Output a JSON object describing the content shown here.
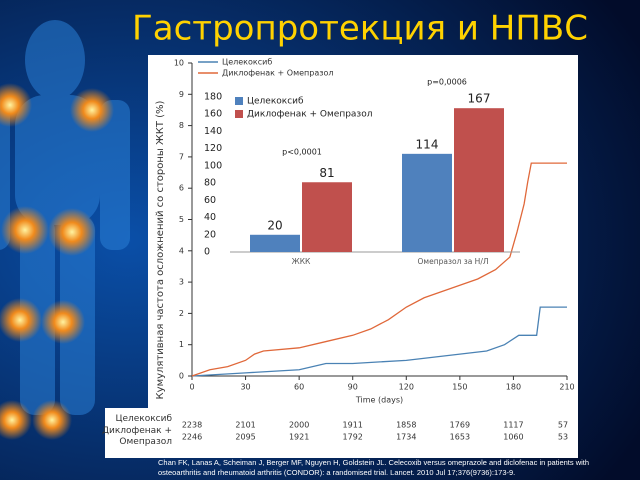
{
  "title": "Гастропротекция и НПВС",
  "chart_data": [
    {
      "type": "line",
      "x_label": "Time (days)",
      "y_label": "Кумулятивная частота осложнений со стороны ЖКТ (%)",
      "xlim": [
        0,
        210
      ],
      "xticks": [
        0,
        30,
        60,
        90,
        120,
        150,
        180,
        210
      ],
      "ylim": [
        0,
        10
      ],
      "yticks": [
        0,
        1,
        2,
        3,
        4,
        5,
        6,
        7,
        8,
        9,
        10
      ],
      "series": [
        {
          "name": "Целекоксиб",
          "color": "#4a82b4",
          "x": [
            0,
            30,
            60,
            75,
            90,
            120,
            150,
            165,
            175,
            183,
            193,
            195,
            210
          ],
          "values": [
            0,
            0.1,
            0.2,
            0.4,
            0.4,
            0.5,
            0.7,
            0.8,
            1.0,
            1.3,
            1.3,
            2.2,
            2.2
          ]
        },
        {
          "name": "Диклофенак + Омепразол",
          "color": "#e0683a",
          "x": [
            0,
            10,
            20,
            30,
            35,
            40,
            60,
            75,
            90,
            100,
            110,
            120,
            130,
            145,
            160,
            170,
            178,
            182,
            186,
            188,
            190,
            210
          ],
          "values": [
            0,
            0.2,
            0.3,
            0.5,
            0.7,
            0.8,
            0.9,
            1.1,
            1.3,
            1.5,
            1.8,
            2.2,
            2.5,
            2.8,
            3.1,
            3.4,
            3.8,
            4.6,
            5.5,
            6.2,
            6.8,
            6.8
          ]
        }
      ]
    },
    {
      "type": "bar",
      "categories": [
        "ЖКК",
        "Омепразол за Н/Л"
      ],
      "ylim": [
        0,
        180
      ],
      "yticks": [
        0,
        20,
        40,
        60,
        80,
        100,
        120,
        140,
        160,
        180
      ],
      "series": [
        {
          "name": "Целекоксиб",
          "color": "#4f81bd",
          "values": [
            20,
            114
          ]
        },
        {
          "name": "Диклофенак + Омепразол",
          "color": "#c0504d",
          "values": [
            81,
            167
          ]
        }
      ],
      "annotations": [
        "p<0,0001",
        "p=0,0006"
      ]
    }
  ],
  "risk_table": {
    "rows": [
      {
        "label": "Целекоксиб",
        "values": [
          2238,
          2101,
          2000,
          1911,
          1858,
          1769,
          1117,
          57
        ]
      },
      {
        "label": "Диклофенак + Омепразол",
        "values": [
          2246,
          2095,
          1921,
          1792,
          1734,
          1653,
          1060,
          53
        ]
      }
    ]
  },
  "citation": "Chan FK, Lanas A, Scheiman J, Berger MF, Nguyen H, Goldstein JL. Celecoxib versus omeprazole and diclofenac in patients with osteoarthritis and rheumatoid arthritis (CONDOR): a randomised trial. Lancet. 2010 Jul 17;376(9736):173-9."
}
